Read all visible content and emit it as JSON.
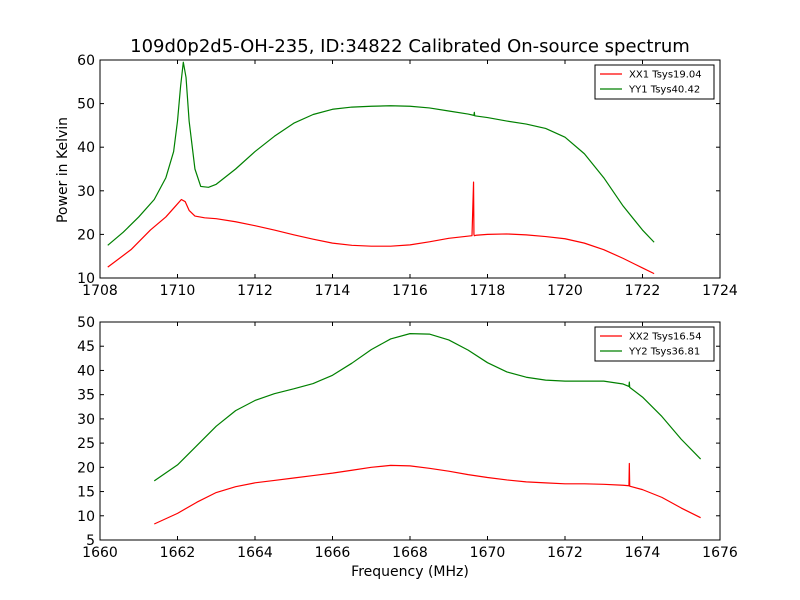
{
  "figure": {
    "title": "109d0p2d5-OH-235, ID:34822 Calibrated On-source spectrum",
    "ylabel": "Power in Kelvin",
    "xlabel": "Frequency (MHz)"
  },
  "chart_data": [
    {
      "type": "line",
      "xlim": [
        1708,
        1724
      ],
      "ylim": [
        10,
        60
      ],
      "xticks": [
        1708,
        1710,
        1712,
        1714,
        1716,
        1718,
        1720,
        1722,
        1724
      ],
      "yticks": [
        10,
        20,
        30,
        40,
        50,
        60
      ],
      "legend_position": "top-right",
      "series": [
        {
          "name": "XX1 Tsys19.04",
          "color": "#ff0000",
          "x": [
            1708.2,
            1708.8,
            1709.3,
            1709.7,
            1709.95,
            1710.1,
            1710.2,
            1710.3,
            1710.45,
            1710.7,
            1711.0,
            1711.5,
            1712.0,
            1712.5,
            1713.0,
            1713.5,
            1714.0,
            1714.5,
            1715.0,
            1715.5,
            1716.0,
            1716.5,
            1717.0,
            1717.6,
            1717.64,
            1717.65,
            1717.66,
            1717.7,
            1718.0,
            1718.5,
            1719.0,
            1719.5,
            1720.0,
            1720.5,
            1721.0,
            1721.5,
            1722.0,
            1722.3
          ],
          "y": [
            12.5,
            16.5,
            21.0,
            24.0,
            26.5,
            28.0,
            27.5,
            25.5,
            24.2,
            23.8,
            23.6,
            22.9,
            22.0,
            21.0,
            19.9,
            18.9,
            18.0,
            17.5,
            17.3,
            17.3,
            17.6,
            18.3,
            19.1,
            19.7,
            32.0,
            20.0,
            19.7,
            19.8,
            20.0,
            20.1,
            19.9,
            19.5,
            19.0,
            18.0,
            16.5,
            14.5,
            12.3,
            11.0
          ]
        },
        {
          "name": "YY1 Tsys40.42",
          "color": "#008000",
          "x": [
            1708.2,
            1708.6,
            1709.0,
            1709.4,
            1709.7,
            1709.9,
            1710.0,
            1710.08,
            1710.15,
            1710.22,
            1710.3,
            1710.45,
            1710.6,
            1710.8,
            1711.0,
            1711.5,
            1712.0,
            1712.5,
            1713.0,
            1713.5,
            1714.0,
            1714.5,
            1715.0,
            1715.5,
            1716.0,
            1716.5,
            1717.0,
            1717.5,
            1717.65,
            1717.66,
            1717.67,
            1718.0,
            1718.5,
            1719.0,
            1719.5,
            1720.0,
            1720.5,
            1721.0,
            1721.5,
            1722.0,
            1722.3
          ],
          "y": [
            17.5,
            20.5,
            24.0,
            28.0,
            33.0,
            39.0,
            46.0,
            54.0,
            59.5,
            56.0,
            46.0,
            35.0,
            31.0,
            30.8,
            31.5,
            35.0,
            39.0,
            42.5,
            45.5,
            47.5,
            48.7,
            49.2,
            49.4,
            49.5,
            49.4,
            49.0,
            48.3,
            47.6,
            47.3,
            48.0,
            47.2,
            46.8,
            46.0,
            45.3,
            44.3,
            42.3,
            38.5,
            33.0,
            26.5,
            21.0,
            18.2
          ]
        }
      ]
    },
    {
      "type": "line",
      "xlim": [
        1660,
        1676
      ],
      "ylim": [
        5,
        50
      ],
      "xticks": [
        1660,
        1662,
        1664,
        1666,
        1668,
        1670,
        1672,
        1674,
        1676
      ],
      "yticks": [
        5,
        10,
        15,
        20,
        25,
        30,
        35,
        40,
        45,
        50
      ],
      "legend_position": "top-right",
      "series": [
        {
          "name": "XX2 Tsys16.54",
          "color": "#ff0000",
          "x": [
            1661.4,
            1662.0,
            1662.5,
            1663.0,
            1663.5,
            1664.0,
            1664.5,
            1665.0,
            1665.5,
            1666.0,
            1666.5,
            1667.0,
            1667.5,
            1668.0,
            1668.5,
            1669.0,
            1669.5,
            1670.0,
            1670.5,
            1671.0,
            1671.5,
            1672.0,
            1672.5,
            1673.0,
            1673.5,
            1673.65,
            1673.66,
            1673.67,
            1674.0,
            1674.5,
            1675.0,
            1675.5
          ],
          "y": [
            8.3,
            10.5,
            12.8,
            14.8,
            16.0,
            16.8,
            17.3,
            17.8,
            18.3,
            18.8,
            19.4,
            20.0,
            20.4,
            20.3,
            19.8,
            19.2,
            18.5,
            17.9,
            17.4,
            17.0,
            16.8,
            16.6,
            16.6,
            16.5,
            16.3,
            16.2,
            20.8,
            16.1,
            15.4,
            13.8,
            11.6,
            9.6
          ]
        },
        {
          "name": "YY2 Tsys36.81",
          "color": "#008000",
          "x": [
            1661.4,
            1662.0,
            1662.5,
            1663.0,
            1663.5,
            1664.0,
            1664.5,
            1665.0,
            1665.5,
            1666.0,
            1666.5,
            1667.0,
            1667.5,
            1668.0,
            1668.5,
            1669.0,
            1669.5,
            1670.0,
            1670.5,
            1671.0,
            1671.5,
            1672.0,
            1672.5,
            1673.0,
            1673.5,
            1673.65,
            1673.66,
            1673.67,
            1674.0,
            1674.5,
            1675.0,
            1675.5
          ],
          "y": [
            17.2,
            20.5,
            24.5,
            28.5,
            31.7,
            33.8,
            35.2,
            36.2,
            37.3,
            39.0,
            41.5,
            44.3,
            46.5,
            47.6,
            47.5,
            46.3,
            44.2,
            41.6,
            39.7,
            38.6,
            38.0,
            37.8,
            37.8,
            37.8,
            37.2,
            36.7,
            37.6,
            36.5,
            34.5,
            30.5,
            25.8,
            21.7
          ]
        }
      ]
    }
  ]
}
